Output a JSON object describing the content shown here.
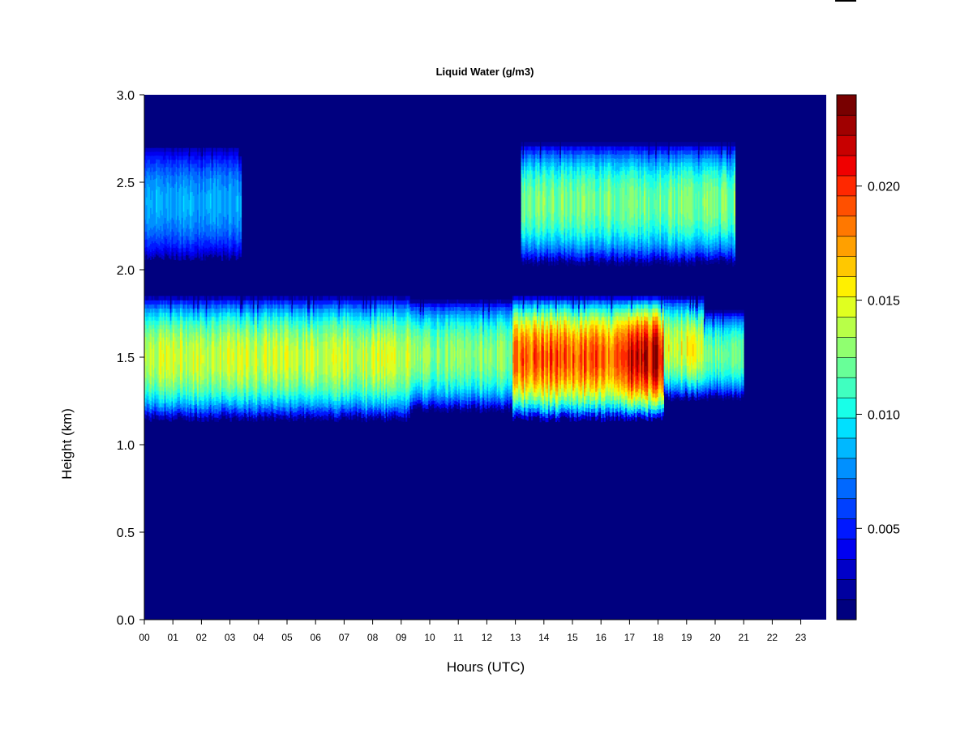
{
  "chart_data": {
    "type": "heatmap",
    "title": "Liquid Water (g/m3)",
    "xlabel": "Hours (UTC)",
    "ylabel": "Height (km)",
    "x_ticks": [
      "00",
      "01",
      "02",
      "03",
      "04",
      "05",
      "06",
      "07",
      "08",
      "09",
      "10",
      "11",
      "12",
      "13",
      "14",
      "15",
      "16",
      "17",
      "18",
      "19",
      "20",
      "21",
      "22",
      "23"
    ],
    "y_ticks": [
      "0.0",
      "0.5",
      "1.0",
      "1.5",
      "2.0",
      "2.5",
      "3.0"
    ],
    "xlim": [
      0,
      24
    ],
    "ylim": [
      0,
      3.0
    ],
    "colorbar": {
      "range": [
        0.001,
        0.024
      ],
      "ticks": [
        "0.005",
        "0.010",
        "0.015",
        "0.020"
      ],
      "tick_values": [
        0.005,
        0.01,
        0.015,
        0.02
      ],
      "levels": 23,
      "colors": [
        "#00007f",
        "#00009f",
        "#0000c8",
        "#0000f0",
        "#0018ff",
        "#0040ff",
        "#0068ff",
        "#0090ff",
        "#00b8ff",
        "#00e0ff",
        "#18ffe8",
        "#40ffc0",
        "#68ff98",
        "#90ff70",
        "#b8ff48",
        "#e0ff20",
        "#fff000",
        "#ffc800",
        "#ffa000",
        "#ff7800",
        "#ff5000",
        "#ff2800",
        "#f00000",
        "#c80000",
        "#a00000",
        "#780000"
      ]
    },
    "background_value": 0.0,
    "layers": [
      {
        "name": "lower cloud",
        "x_start": 0.0,
        "x_end": 9.3,
        "base_km": 1.15,
        "top_km": 1.85,
        "peak": 0.0148
      },
      {
        "name": "lower cloud",
        "x_start": 9.3,
        "x_end": 12.9,
        "base_km": 1.2,
        "top_km": 1.83,
        "peak": 0.0132
      },
      {
        "name": "lower cloud",
        "x_start": 12.9,
        "x_end": 16.8,
        "base_km": 1.15,
        "top_km": 1.85,
        "peak": 0.0195
      },
      {
        "name": "lower cloud",
        "x_start": 16.8,
        "x_end": 18.2,
        "base_km": 1.15,
        "top_km": 1.85,
        "peak": 0.0225
      },
      {
        "name": "lower cloud",
        "x_start": 18.2,
        "x_end": 19.6,
        "base_km": 1.27,
        "top_km": 1.85,
        "peak": 0.0152
      },
      {
        "name": "lower cloud",
        "x_start": 19.6,
        "x_end": 21.0,
        "base_km": 1.27,
        "top_km": 1.77,
        "peak": 0.0128
      },
      {
        "name": "upper cloud",
        "x_start": 0.0,
        "x_end": 3.4,
        "base_km": 2.05,
        "top_km": 2.72,
        "peak": 0.0085
      },
      {
        "name": "upper cloud",
        "x_start": 13.2,
        "x_end": 20.7,
        "base_km": 2.04,
        "top_km": 2.73,
        "peak": 0.0128
      }
    ]
  }
}
